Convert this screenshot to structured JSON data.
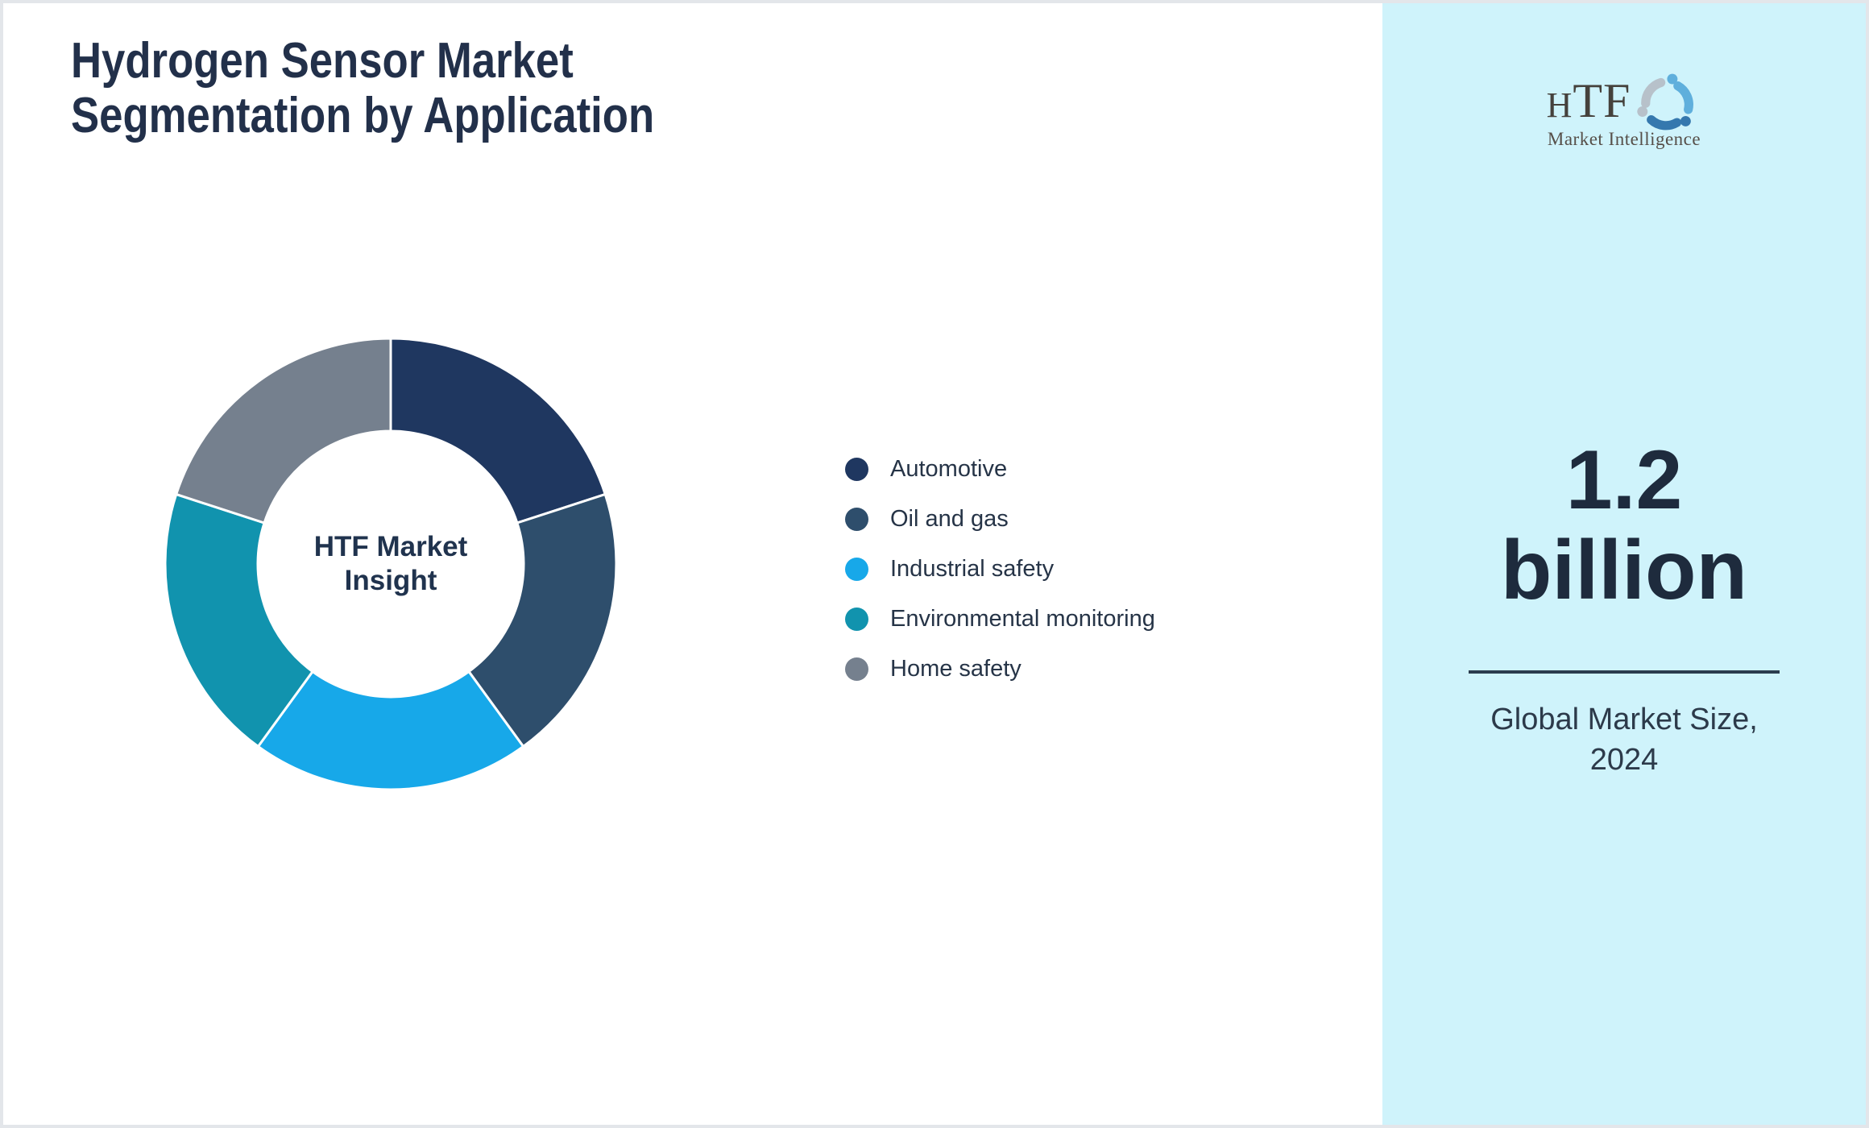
{
  "page": {
    "title_line1": "Hydrogen Sensor Market",
    "title_line2": "Segmentation by Application"
  },
  "logo": {
    "text_h": "H",
    "text_tf": "TF",
    "tagline": "Market Intelligence",
    "icon_colors": [
      "#5fafdc",
      "#3578ae",
      "#b7c1ca"
    ]
  },
  "sidebar": {
    "background": "#cff3fb",
    "stat_line1": "1.2",
    "stat_line2": "billion",
    "caption_line1": "Global Market Size,",
    "caption_line2": "2024"
  },
  "chart_data": {
    "type": "pie",
    "subtype": "donut",
    "title": "Hydrogen Sensor Market Segmentation by Application",
    "units": "percent share (equal segments, no numeric labels shown)",
    "start_angle_deg": 0,
    "direction": "clockwise",
    "inner_radius_ratio": 0.59,
    "legend_position": "right",
    "center_label_line1": "HTF Market",
    "center_label_line2": "Insight",
    "segments": [
      {
        "label": "Automotive",
        "value": 20,
        "color": "#1f3760"
      },
      {
        "label": "Oil and gas",
        "value": 20,
        "color": "#2e4e6c"
      },
      {
        "label": "Industrial safety",
        "value": 20,
        "color": "#17a8e9"
      },
      {
        "label": "Environmental monitoring",
        "value": 20,
        "color": "#1193ae"
      },
      {
        "label": "Home safety",
        "value": 20,
        "color": "#75808e"
      }
    ]
  }
}
